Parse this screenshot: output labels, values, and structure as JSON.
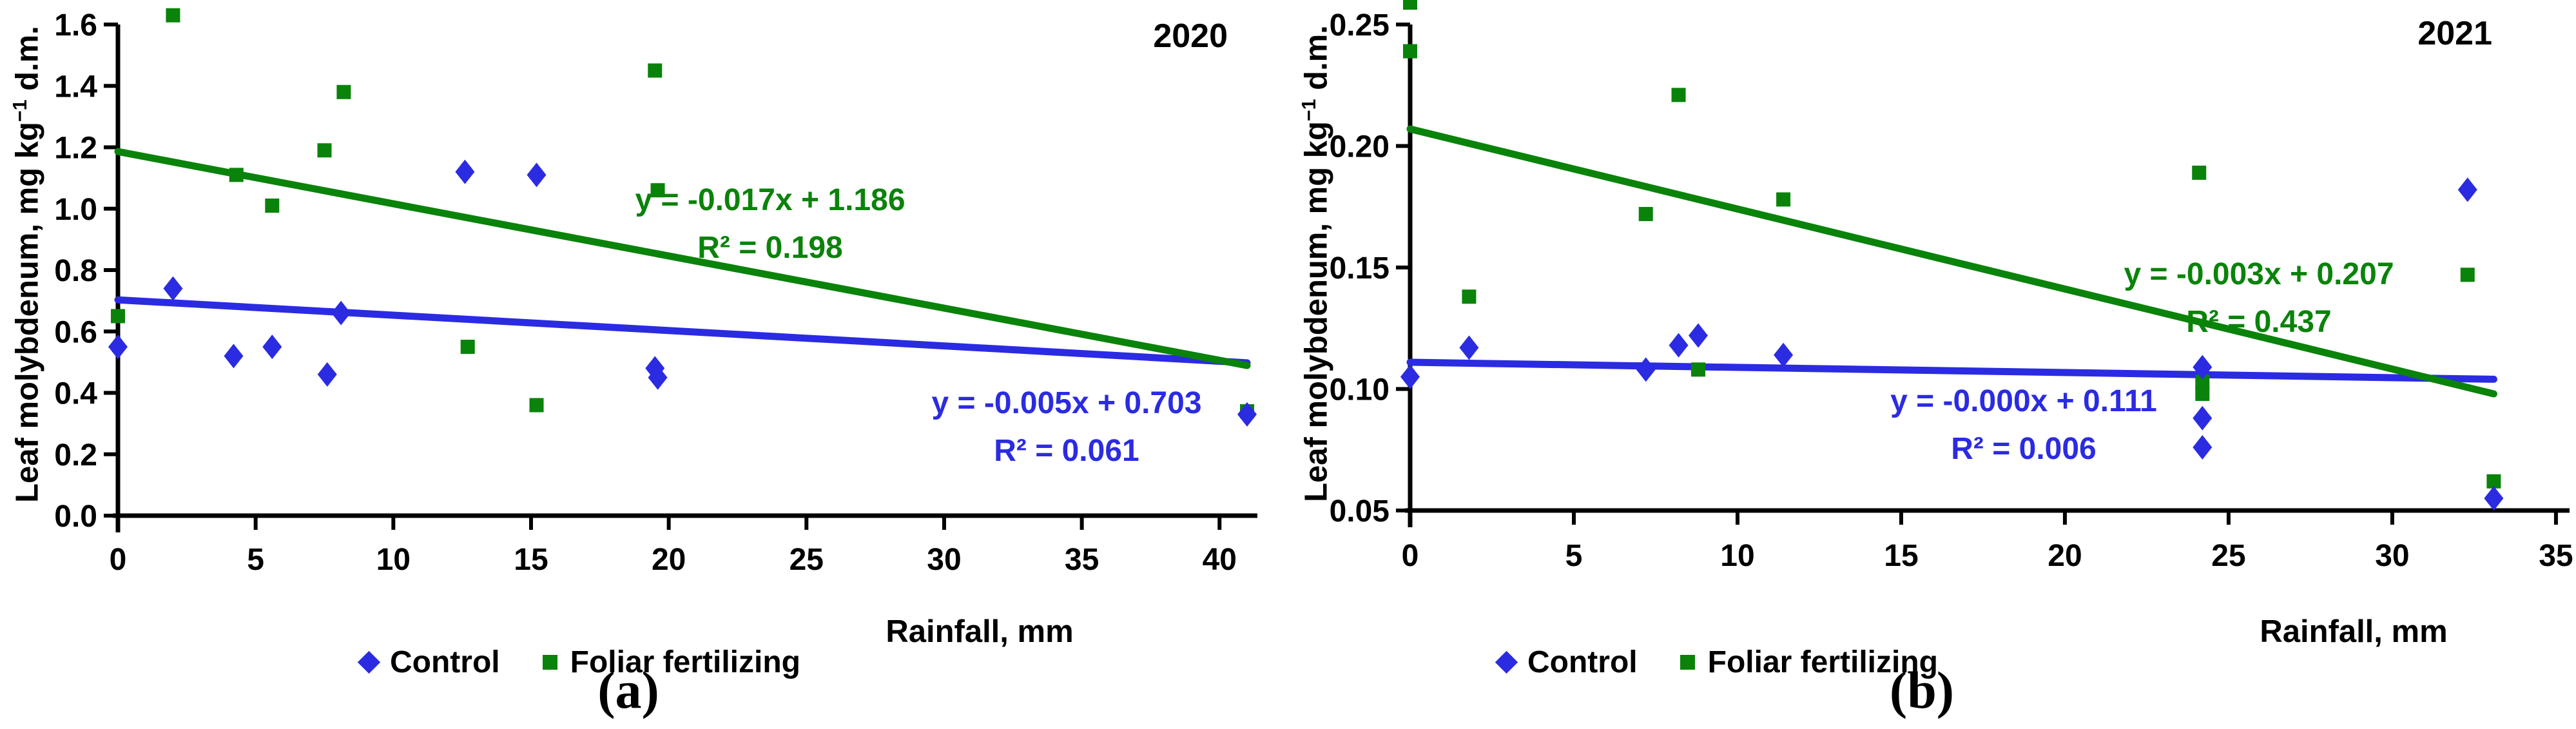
{
  "colors": {
    "blue": "#2b2be2",
    "green": "#0a830a",
    "axis": "#000000",
    "text": "#000000"
  },
  "chart_data": [
    {
      "type": "scatter",
      "panel": "a",
      "caption": "(a)",
      "year_label": "2020",
      "xlabel": "Rainfall, mm",
      "ylabel": {
        "prefix": "Leaf molybdenum, mg kg",
        "sup": "−1",
        "suffix": " d.m."
      },
      "xlim": [
        0,
        41
      ],
      "ylim": [
        0,
        1.6
      ],
      "grid": false,
      "legend_position": "bottom",
      "xticks": {
        "values": [
          0,
          5,
          10,
          15,
          20,
          25,
          30,
          35,
          40
        ],
        "labels": [
          "0",
          "5",
          "10",
          "15",
          "20",
          "25",
          "30",
          "35",
          "40"
        ]
      },
      "yticks": {
        "values": [
          0,
          0.2,
          0.4,
          0.6,
          0.8,
          1.0,
          1.2,
          1.4,
          1.6
        ],
        "labels": [
          "0.0",
          "0.2",
          "0.4",
          "0.6",
          "0.8",
          "1.0",
          "1.2",
          "1.4",
          "1.6"
        ]
      },
      "series": [
        {
          "name": "Control",
          "marker": "diamond",
          "color_key": "blue",
          "points": [
            [
              0,
              0.55
            ],
            [
              2,
              0.74
            ],
            [
              4.2,
              0.52
            ],
            [
              5.6,
              0.55
            ],
            [
              7.6,
              0.46
            ],
            [
              8.1,
              0.66
            ],
            [
              12.6,
              1.12
            ],
            [
              15.2,
              1.11
            ],
            [
              19.5,
              0.48
            ],
            [
              19.6,
              0.45
            ],
            [
              41,
              0.33
            ]
          ],
          "trend": {
            "x0": 0,
            "y0": 0.703,
            "x1": 41,
            "y1": 0.498,
            "equation": "y = -0.005x + 0.703",
            "r2": "R² = 0.061"
          }
        },
        {
          "name": "Foliar fertilizing",
          "marker": "square",
          "color_key": "green",
          "points": [
            [
              0,
              0.65
            ],
            [
              2,
              1.63
            ],
            [
              4.3,
              1.11
            ],
            [
              5.6,
              1.01
            ],
            [
              7.5,
              1.19
            ],
            [
              8.2,
              1.38
            ],
            [
              12.7,
              0.55
            ],
            [
              15.2,
              0.36
            ],
            [
              19.5,
              1.45
            ],
            [
              19.6,
              1.06
            ],
            [
              41,
              0.34
            ]
          ],
          "trend": {
            "x0": 0,
            "y0": 1.186,
            "x1": 41,
            "y1": 0.489,
            "equation": "y = -0.017x + 1.186",
            "r2": "R² = 0.198"
          }
        }
      ]
    },
    {
      "type": "scatter",
      "panel": "b",
      "caption": "(b)",
      "year_label": "2021",
      "xlabel": "Rainfall, mm",
      "ylabel": {
        "prefix": "Leaf molybdenum, mg kg",
        "sup": "−1",
        "suffix": " d.m."
      },
      "xlim": [
        0,
        35.1
      ],
      "ylim": [
        0.05,
        0.25
      ],
      "grid": false,
      "legend_position": "bottom",
      "xticks": {
        "values": [
          0,
          5,
          10,
          15,
          20,
          25,
          30,
          35
        ],
        "labels": [
          "0",
          "5",
          "10",
          "15",
          "20",
          "25",
          "30",
          "35"
        ]
      },
      "yticks": {
        "values": [
          0.05,
          0.1,
          0.15,
          0.2,
          0.25
        ],
        "labels": [
          "0.05",
          "0.10",
          "0.15",
          "0.20",
          "0.25"
        ]
      },
      "series": [
        {
          "name": "Control",
          "marker": "diamond",
          "color_key": "blue",
          "points": [
            [
              0,
              0.105
            ],
            [
              1.8,
              0.117
            ],
            [
              7.2,
              0.108
            ],
            [
              8.2,
              0.118
            ],
            [
              8.8,
              0.122
            ],
            [
              11.4,
              0.114
            ],
            [
              24.2,
              0.109
            ],
            [
              24.2,
              0.088
            ],
            [
              24.2,
              0.076
            ],
            [
              32.3,
              0.182
            ],
            [
              33.1,
              0.055
            ]
          ],
          "trend": {
            "x0": 0,
            "y0": 0.111,
            "x1": 33.1,
            "y1": 0.104,
            "equation": "y = -0.000x + 0.111",
            "r2": "R² = 0.006"
          }
        },
        {
          "name": "Foliar fertilizing",
          "marker": "square",
          "color_key": "green",
          "points": [
            [
              0,
              0.259
            ],
            [
              0,
              0.239
            ],
            [
              1.8,
              0.138
            ],
            [
              7.2,
              0.172
            ],
            [
              8.2,
              0.221
            ],
            [
              8.8,
              0.108
            ],
            [
              11.4,
              0.178
            ],
            [
              24.1,
              0.189
            ],
            [
              24.2,
              0.103
            ],
            [
              24.2,
              0.098
            ],
            [
              32.3,
              0.147
            ],
            [
              33.1,
              0.062
            ]
          ],
          "trend": {
            "x0": 0,
            "y0": 0.207,
            "x1": 33.1,
            "y1": 0.098,
            "equation": "y = -0.003x + 0.207",
            "r2": "R² = 0.437"
          }
        }
      ]
    }
  ]
}
